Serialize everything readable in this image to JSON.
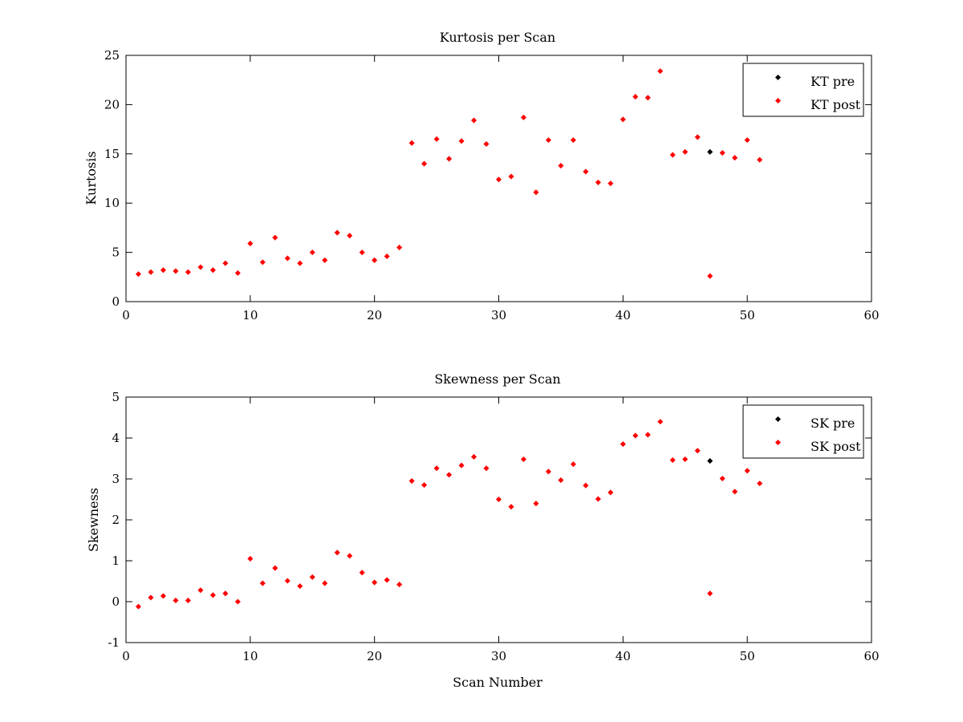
{
  "chart_data": [
    {
      "type": "scatter",
      "title": "Kurtosis per Scan",
      "xlabel": "",
      "ylabel": "Kurtosis",
      "xlim": [
        0,
        60
      ],
      "ylim": [
        0,
        25
      ],
      "xticks": [
        0,
        10,
        20,
        30,
        40,
        50,
        60
      ],
      "yticks": [
        0,
        5,
        10,
        15,
        20,
        25
      ],
      "grid": false,
      "legend_position": "top-right",
      "series": [
        {
          "name": "KT pre",
          "color": "#000000",
          "marker": "diamond",
          "points": [
            [
              47,
              15.2
            ]
          ]
        },
        {
          "name": "KT post",
          "color": "#ff0000",
          "marker": "diamond",
          "points": [
            [
              1,
              2.8
            ],
            [
              2,
              3.0
            ],
            [
              3,
              3.2
            ],
            [
              4,
              3.1
            ],
            [
              5,
              3.0
            ],
            [
              6,
              3.5
            ],
            [
              7,
              3.2
            ],
            [
              8,
              3.9
            ],
            [
              9,
              2.9
            ],
            [
              10,
              5.9
            ],
            [
              11,
              4.0
            ],
            [
              12,
              6.5
            ],
            [
              13,
              4.4
            ],
            [
              14,
              3.9
            ],
            [
              15,
              5.0
            ],
            [
              16,
              4.2
            ],
            [
              17,
              7.0
            ],
            [
              18,
              6.7
            ],
            [
              19,
              5.0
            ],
            [
              20,
              4.2
            ],
            [
              21,
              4.6
            ],
            [
              22,
              5.5
            ],
            [
              23,
              16.1
            ],
            [
              24,
              14.0
            ],
            [
              25,
              16.5
            ],
            [
              26,
              14.5
            ],
            [
              27,
              16.3
            ],
            [
              28,
              18.4
            ],
            [
              29,
              16.0
            ],
            [
              30,
              12.4
            ],
            [
              31,
              12.7
            ],
            [
              32,
              18.7
            ],
            [
              33,
              11.1
            ],
            [
              34,
              16.4
            ],
            [
              35,
              13.8
            ],
            [
              36,
              16.4
            ],
            [
              37,
              13.2
            ],
            [
              38,
              12.1
            ],
            [
              39,
              12.0
            ],
            [
              40,
              18.5
            ],
            [
              41,
              20.8
            ],
            [
              42,
              20.7
            ],
            [
              43,
              23.4
            ],
            [
              44,
              14.9
            ],
            [
              45,
              15.2
            ],
            [
              46,
              16.7
            ],
            [
              47,
              2.6
            ],
            [
              48,
              15.1
            ],
            [
              49,
              14.6
            ],
            [
              50,
              16.4
            ],
            [
              51,
              14.4
            ]
          ]
        }
      ]
    },
    {
      "type": "scatter",
      "title": "Skewness per Scan",
      "xlabel": "Scan Number",
      "ylabel": "Skewness",
      "xlim": [
        0,
        60
      ],
      "ylim": [
        -1,
        5
      ],
      "xticks": [
        0,
        10,
        20,
        30,
        40,
        50,
        60
      ],
      "yticks": [
        -1,
        0,
        1,
        2,
        3,
        4,
        5
      ],
      "grid": false,
      "legend_position": "top-right",
      "series": [
        {
          "name": "SK pre",
          "color": "#000000",
          "marker": "diamond",
          "points": [
            [
              47,
              3.44
            ]
          ]
        },
        {
          "name": "SK post",
          "color": "#ff0000",
          "marker": "diamond",
          "points": [
            [
              1,
              -0.12
            ],
            [
              2,
              0.1
            ],
            [
              3,
              0.14
            ],
            [
              4,
              0.03
            ],
            [
              5,
              0.03
            ],
            [
              6,
              0.28
            ],
            [
              7,
              0.16
            ],
            [
              8,
              0.2
            ],
            [
              9,
              0.0
            ],
            [
              10,
              1.05
            ],
            [
              11,
              0.45
            ],
            [
              12,
              0.82
            ],
            [
              13,
              0.51
            ],
            [
              14,
              0.38
            ],
            [
              15,
              0.6
            ],
            [
              16,
              0.45
            ],
            [
              17,
              1.2
            ],
            [
              18,
              1.12
            ],
            [
              19,
              0.71
            ],
            [
              20,
              0.47
            ],
            [
              21,
              0.53
            ],
            [
              22,
              0.42
            ],
            [
              23,
              2.95
            ],
            [
              24,
              2.85
            ],
            [
              25,
              3.26
            ],
            [
              26,
              3.1
            ],
            [
              27,
              3.33
            ],
            [
              28,
              3.54
            ],
            [
              29,
              3.26
            ],
            [
              30,
              2.5
            ],
            [
              31,
              2.32
            ],
            [
              32,
              3.48
            ],
            [
              33,
              2.4
            ],
            [
              34,
              3.18
            ],
            [
              35,
              2.97
            ],
            [
              36,
              3.36
            ],
            [
              37,
              2.84
            ],
            [
              38,
              2.51
            ],
            [
              39,
              2.67
            ],
            [
              40,
              3.85
            ],
            [
              41,
              4.06
            ],
            [
              42,
              4.08
            ],
            [
              43,
              4.4
            ],
            [
              44,
              3.46
            ],
            [
              45,
              3.48
            ],
            [
              46,
              3.69
            ],
            [
              47,
              0.2
            ],
            [
              48,
              3.01
            ],
            [
              49,
              2.69
            ],
            [
              50,
              3.2
            ],
            [
              51,
              2.89
            ]
          ]
        }
      ]
    }
  ]
}
